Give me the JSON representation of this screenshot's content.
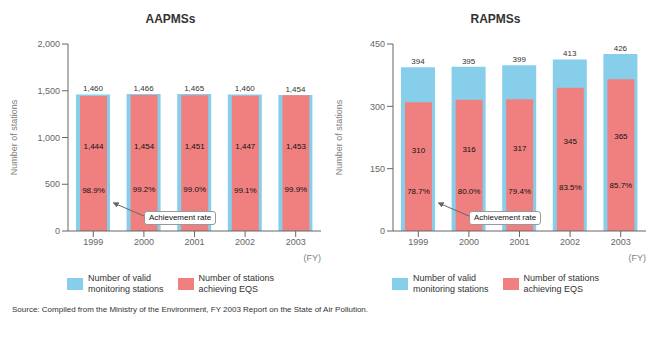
{
  "chart_data": [
    {
      "type": "bar",
      "title": "AAPMSs",
      "categories": [
        "1999",
        "2000",
        "2001",
        "2002",
        "2003"
      ],
      "series": [
        {
          "name": "Number of valid\nmonitoring stations",
          "color": "#87ceeb",
          "values": [
            1460,
            1466,
            1465,
            1460,
            1454
          ],
          "value_labels": [
            "1,460",
            "1,466",
            "1,465",
            "1,460",
            "1,454"
          ]
        },
        {
          "name": "Number of stations\nachieving EQS",
          "color": "#f08080",
          "values": [
            1444,
            1454,
            1451,
            1447,
            1453
          ],
          "value_labels": [
            "1,444",
            "1,454",
            "1,451",
            "1,447",
            "1,453"
          ],
          "rate_labels": [
            "98.9%",
            "99.2%",
            "99.0%",
            "99.1%",
            "99.9%"
          ]
        }
      ],
      "ylabel": "Number of stations",
      "xlabel": "(FY)",
      "ylim": [
        0,
        2000
      ],
      "yticks": [
        0,
        500,
        {
          "value": 1000,
          "label": "1,000"
        },
        {
          "value": 1500,
          "label": "1,500"
        },
        {
          "value": 2000,
          "label": "2,000"
        }
      ],
      "data_labels": true,
      "grid": false,
      "legend": "bottom",
      "annotations": [
        {
          "text": "Achievement rate"
        }
      ]
    },
    {
      "type": "bar",
      "title": "RAPMSs",
      "categories": [
        "1999",
        "2000",
        "2001",
        "2002",
        "2003"
      ],
      "series": [
        {
          "name": "Number of valid\nmonitoring stations",
          "color": "#87ceeb",
          "values": [
            394,
            395,
            399,
            413,
            426
          ]
        },
        {
          "name": "Number of stations\nachieving EQS",
          "color": "#f08080",
          "values": [
            310,
            316,
            317,
            345,
            365
          ],
          "rate_labels": [
            "78.7%",
            "80.0%",
            "79.4%",
            "83.5%",
            "85.7%"
          ]
        }
      ],
      "ylabel": "Number of stations",
      "xlabel": "(FY)",
      "ylim": [
        0,
        450
      ],
      "yticks": [
        0,
        150,
        300,
        450
      ],
      "data_labels": true,
      "grid": false,
      "legend": "bottom",
      "annotations": [
        {
          "text": "Achievement rate"
        }
      ]
    }
  ],
  "source": "Source: Compiled from the Ministry of the Environment, FY 2003 Report on the State of Air Pollution."
}
